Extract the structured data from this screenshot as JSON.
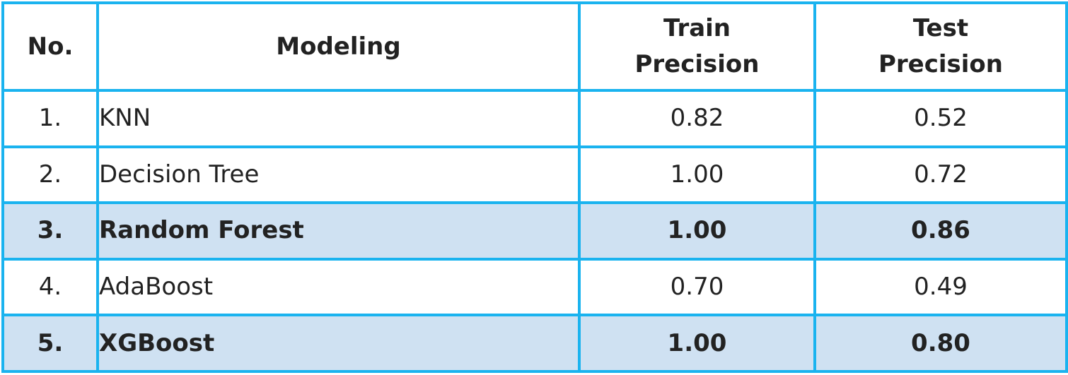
{
  "table": {
    "headers": {
      "no": "No.",
      "modeling": "Modeling",
      "train_line1": "Train",
      "train_line2": "Precision",
      "test_line1": "Test",
      "test_line2": "Precision"
    },
    "highlight_color": "#cfe1f2",
    "border_color": "#1ab3ef",
    "rows": [
      {
        "no": "1.",
        "model": "KNN",
        "train": "0.82",
        "test": "0.52",
        "highlighted": false
      },
      {
        "no": "2.",
        "model": "Decision Tree",
        "train": "1.00",
        "test": "0.72",
        "highlighted": false
      },
      {
        "no": "3.",
        "model": "Random Forest",
        "train": "1.00",
        "test": "0.86",
        "highlighted": true
      },
      {
        "no": "4.",
        "model": "AdaBoost",
        "train": "0.70",
        "test": "0.49",
        "highlighted": false
      },
      {
        "no": "5.",
        "model": "XGBoost",
        "train": "1.00",
        "test": "0.80",
        "highlighted": true
      }
    ]
  }
}
